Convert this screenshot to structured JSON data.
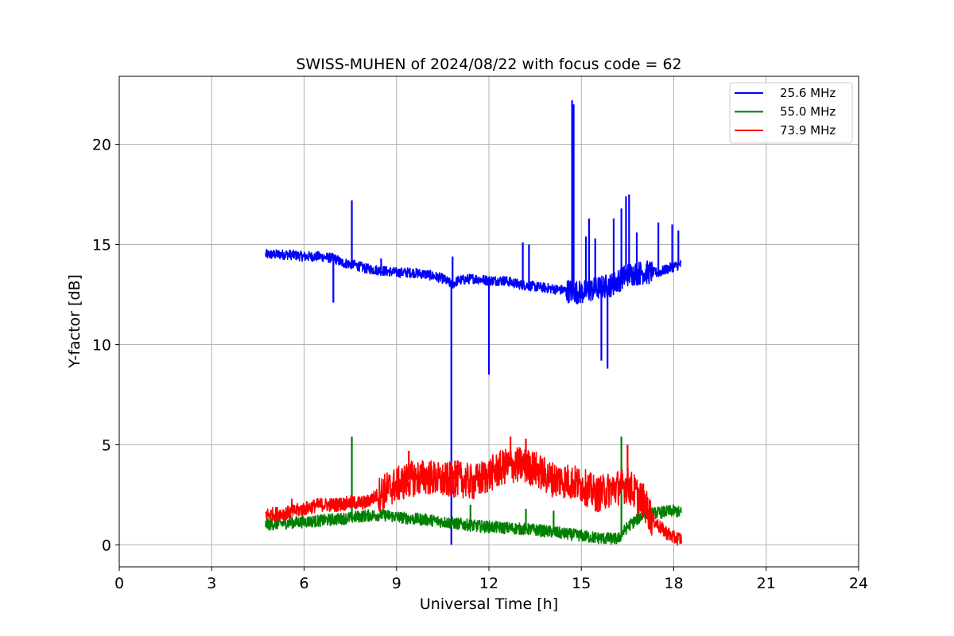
{
  "chart_data": {
    "type": "line",
    "title": "SWISS-MUHEN of 2024/08/22 with focus code = 62",
    "xlabel": "Universal Time [h]",
    "ylabel": "Y-factor [dB]",
    "xlim": [
      0,
      24
    ],
    "ylim": [
      -1.1,
      23.4
    ],
    "xticks": [
      0,
      3,
      6,
      9,
      12,
      15,
      18,
      21,
      24
    ],
    "yticks": [
      0,
      5,
      10,
      15,
      20
    ],
    "grid": true,
    "legend_position": "top-right",
    "series": [
      {
        "name": "25.6 MHz",
        "color": "#0000ff",
        "x": [
          4.75,
          5.0,
          5.5,
          6.0,
          6.5,
          7.0,
          7.2,
          7.6,
          8.0,
          8.5,
          9.0,
          9.5,
          10.0,
          10.5,
          10.8,
          11.0,
          11.5,
          12.0,
          12.5,
          13.0,
          13.5,
          14.0,
          14.5,
          15.0,
          15.5,
          16.0,
          16.5,
          17.0,
          17.5,
          18.0,
          18.25
        ],
        "y": [
          14.5,
          14.5,
          14.5,
          14.4,
          14.4,
          14.3,
          14.1,
          14.0,
          13.8,
          13.7,
          13.6,
          13.6,
          13.5,
          13.3,
          13.0,
          13.2,
          13.3,
          13.2,
          13.2,
          13.0,
          12.9,
          12.8,
          12.7,
          12.6,
          12.8,
          13.0,
          13.5,
          13.6,
          13.6,
          13.9,
          14.0
        ],
        "spikes": [
          {
            "x": 6.95,
            "y": 12.1
          },
          {
            "x": 7.55,
            "y": 17.2
          },
          {
            "x": 8.5,
            "y": 14.3
          },
          {
            "x": 10.78,
            "y": 0.0
          },
          {
            "x": 10.82,
            "y": 14.4
          },
          {
            "x": 12.0,
            "y": 8.5
          },
          {
            "x": 13.1,
            "y": 15.1
          },
          {
            "x": 13.3,
            "y": 15.0
          },
          {
            "x": 14.7,
            "y": 22.2
          },
          {
            "x": 14.75,
            "y": 22.0
          },
          {
            "x": 15.15,
            "y": 15.4
          },
          {
            "x": 15.25,
            "y": 16.3
          },
          {
            "x": 15.45,
            "y": 15.3
          },
          {
            "x": 15.65,
            "y": 9.2
          },
          {
            "x": 15.85,
            "y": 8.8
          },
          {
            "x": 16.05,
            "y": 16.3
          },
          {
            "x": 16.3,
            "y": 16.8
          },
          {
            "x": 16.45,
            "y": 17.4
          },
          {
            "x": 16.55,
            "y": 17.5
          },
          {
            "x": 16.8,
            "y": 15.6
          },
          {
            "x": 17.5,
            "y": 16.1
          },
          {
            "x": 17.95,
            "y": 16.0
          },
          {
            "x": 18.15,
            "y": 15.7
          }
        ]
      },
      {
        "name": "55.0 MHz",
        "color": "#008000",
        "x": [
          4.75,
          5.5,
          6.5,
          7.5,
          8.0,
          8.5,
          9.0,
          9.5,
          10.0,
          10.5,
          11.0,
          11.5,
          12.0,
          12.5,
          13.0,
          13.5,
          14.0,
          14.5,
          15.0,
          15.5,
          16.0,
          16.2,
          16.5,
          17.0,
          17.5,
          18.0,
          18.25
        ],
        "y": [
          1.0,
          1.1,
          1.2,
          1.35,
          1.45,
          1.5,
          1.4,
          1.3,
          1.25,
          1.15,
          1.05,
          0.95,
          0.9,
          0.85,
          0.8,
          0.75,
          0.65,
          0.55,
          0.45,
          0.35,
          0.3,
          0.3,
          0.9,
          1.5,
          1.6,
          1.7,
          1.6
        ],
        "spikes": [
          {
            "x": 7.55,
            "y": 5.4
          },
          {
            "x": 11.4,
            "y": 2.0
          },
          {
            "x": 13.2,
            "y": 1.8
          },
          {
            "x": 14.1,
            "y": 1.7
          },
          {
            "x": 16.3,
            "y": 5.4
          }
        ]
      },
      {
        "name": "73.9 MHz",
        "color": "#ff0000",
        "x": [
          4.75,
          5.5,
          6.0,
          6.5,
          7.0,
          7.5,
          8.0,
          8.5,
          9.0,
          9.5,
          10.0,
          10.5,
          11.0,
          11.5,
          12.0,
          12.5,
          13.0,
          13.5,
          14.0,
          14.5,
          15.0,
          15.5,
          16.0,
          16.5,
          17.0,
          17.3,
          17.6,
          18.0,
          18.25
        ],
        "y": [
          1.5,
          1.6,
          1.8,
          2.0,
          2.0,
          2.1,
          2.1,
          2.6,
          3.0,
          3.3,
          3.4,
          3.2,
          3.3,
          3.1,
          3.5,
          3.9,
          4.0,
          3.8,
          3.3,
          3.2,
          3.0,
          2.5,
          2.8,
          3.0,
          2.2,
          1.3,
          0.8,
          0.35,
          0.3
        ],
        "spikes": [
          {
            "x": 5.6,
            "y": 2.3
          },
          {
            "x": 9.4,
            "y": 4.7
          },
          {
            "x": 10.9,
            "y": 4.2
          },
          {
            "x": 12.7,
            "y": 5.4
          },
          {
            "x": 13.2,
            "y": 5.3
          },
          {
            "x": 16.5,
            "y": 5.0
          }
        ]
      }
    ]
  }
}
